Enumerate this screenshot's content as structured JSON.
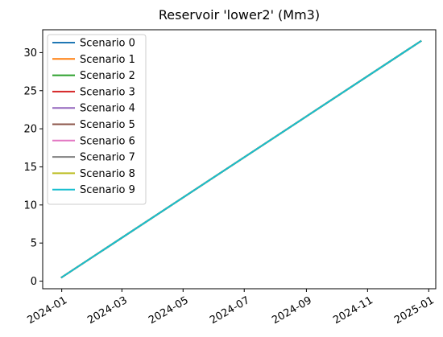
{
  "chart_data": {
    "type": "line",
    "title": "Reservoir 'lower2' (Mm3)",
    "xlabel": "",
    "ylabel": "",
    "x_type": "date",
    "xlim": [
      "2023-12-13",
      "2025-01-08"
    ],
    "ylim": [
      -1.0,
      33.0
    ],
    "x_ticks": [
      "2024-01",
      "2024-03",
      "2024-05",
      "2024-07",
      "2024-09",
      "2024-11",
      "2025-01"
    ],
    "y_ticks": [
      0,
      5,
      10,
      15,
      20,
      25,
      30
    ],
    "grid": false,
    "legend_position": "upper-left",
    "series": [
      {
        "name": "Scenario 0",
        "color": "#1f77b4",
        "x": [
          "2024-01-01",
          "2024-12-24"
        ],
        "y": [
          0.5,
          31.5
        ]
      },
      {
        "name": "Scenario 1",
        "color": "#ff7f0e",
        "x": [
          "2024-01-01",
          "2024-12-24"
        ],
        "y": [
          0.5,
          31.5
        ]
      },
      {
        "name": "Scenario 2",
        "color": "#2ca02c",
        "x": [
          "2024-01-01",
          "2024-12-24"
        ],
        "y": [
          0.5,
          31.5
        ]
      },
      {
        "name": "Scenario 3",
        "color": "#d62728",
        "x": [
          "2024-01-01",
          "2024-12-24"
        ],
        "y": [
          0.5,
          31.5
        ]
      },
      {
        "name": "Scenario 4",
        "color": "#9467bd",
        "x": [
          "2024-01-01",
          "2024-12-24"
        ],
        "y": [
          0.5,
          31.5
        ]
      },
      {
        "name": "Scenario 5",
        "color": "#8c564b",
        "x": [
          "2024-01-01",
          "2024-12-24"
        ],
        "y": [
          0.5,
          31.5
        ]
      },
      {
        "name": "Scenario 6",
        "color": "#e377c2",
        "x": [
          "2024-01-01",
          "2024-12-24"
        ],
        "y": [
          0.5,
          31.5
        ]
      },
      {
        "name": "Scenario 7",
        "color": "#7f7f7f",
        "x": [
          "2024-01-01",
          "2024-12-24"
        ],
        "y": [
          0.5,
          31.5
        ]
      },
      {
        "name": "Scenario 8",
        "color": "#bcbd22",
        "x": [
          "2024-01-01",
          "2024-12-24"
        ],
        "y": [
          0.5,
          31.5
        ]
      },
      {
        "name": "Scenario 9",
        "color": "#17becf",
        "x": [
          "2024-01-01",
          "2024-12-24"
        ],
        "y": [
          0.5,
          31.5
        ]
      }
    ]
  }
}
